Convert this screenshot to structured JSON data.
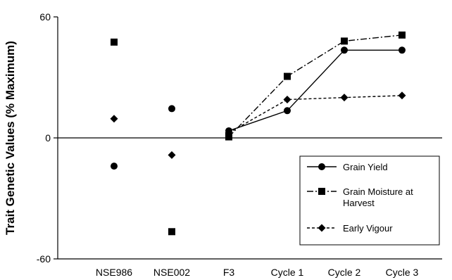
{
  "chart_data": {
    "type": "line",
    "title": "",
    "xlabel": "",
    "ylabel": "Trait Genetic Values (% Maximum)",
    "categories": [
      "NSE986",
      "NSE002",
      "F3",
      "Cycle 1",
      "Cycle 2",
      "Cycle 3"
    ],
    "ylim": [
      -60,
      60
    ],
    "yticks": [
      -60,
      0,
      60
    ],
    "grid": false,
    "legend_position": "bottom-right",
    "series": [
      {
        "name": "Grain Yield",
        "marker": "circle",
        "line_style": "solid",
        "color": "#000000",
        "values": [
          -14,
          14.5,
          3.5,
          13.5,
          43.5,
          43.5
        ],
        "connected_from_index": 2
      },
      {
        "name": "Grain Moisture at Harvest",
        "marker": "square",
        "line_style": "dash-dot",
        "color": "#000000",
        "values": [
          47.5,
          -46.5,
          0.5,
          30.5,
          48,
          51
        ],
        "connected_from_index": 2
      },
      {
        "name": "Early Vigour",
        "marker": "diamond",
        "line_style": "dotted",
        "color": "#000000",
        "values": [
          9.5,
          -8.5,
          2.5,
          19,
          20,
          21
        ],
        "connected_from_index": 2
      }
    ]
  }
}
